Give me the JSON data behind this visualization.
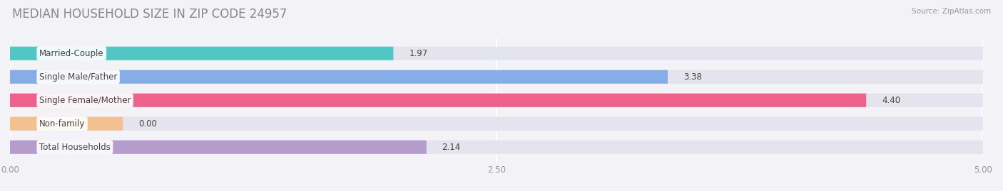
{
  "title": "MEDIAN HOUSEHOLD SIZE IN ZIP CODE 24957",
  "source": "Source: ZipAtlas.com",
  "categories": [
    "Married-Couple",
    "Single Male/Father",
    "Single Female/Mother",
    "Non-family",
    "Total Households"
  ],
  "values": [
    1.97,
    3.38,
    4.4,
    0.0,
    2.14
  ],
  "bar_colors": [
    "#52c5c5",
    "#85aee8",
    "#f0608c",
    "#f5c090",
    "#b49ccc"
  ],
  "xlim": [
    0,
    5.0
  ],
  "xticks": [
    0.0,
    2.5,
    5.0
  ],
  "xtick_labels": [
    "0.00",
    "2.50",
    "5.00"
  ],
  "background_color": "#f2f2f7",
  "bar_background_color": "#e4e4ee",
  "grid_color": "#ffffff",
  "title_color": "#888888",
  "label_color": "#444444",
  "value_color": "#444444",
  "title_fontsize": 12,
  "label_fontsize": 8.5,
  "value_fontsize": 8.5,
  "tick_fontsize": 8.5,
  "bar_height": 0.58,
  "bar_gap": 1.0
}
